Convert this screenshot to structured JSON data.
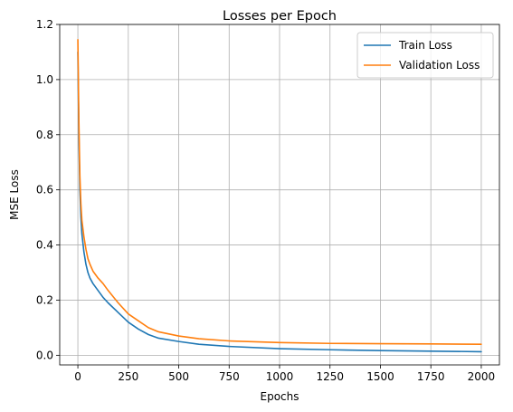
{
  "chart_data": {
    "type": "line",
    "title": "Losses per Epoch",
    "xlabel": "Epochs",
    "ylabel": "MSE Loss",
    "xlim": [
      -90,
      2090
    ],
    "ylim": [
      -0.035,
      1.2
    ],
    "xticks": [
      0,
      250,
      500,
      750,
      1000,
      1250,
      1500,
      1750,
      2000
    ],
    "yticks": [
      0.0,
      0.2,
      0.4,
      0.6,
      0.8,
      1.0,
      1.2
    ],
    "ytick_labels": [
      "0.0",
      "0.2",
      "0.4",
      "0.6",
      "0.8",
      "1.0",
      "1.2"
    ],
    "grid": true,
    "legend_position": "top-right",
    "series": [
      {
        "name": "Train Loss",
        "color": "#1f77b4",
        "x": [
          0,
          5,
          10,
          15,
          20,
          30,
          40,
          50,
          60,
          75,
          100,
          125,
          150,
          200,
          250,
          300,
          350,
          400,
          500,
          600,
          750,
          1000,
          1250,
          1500,
          1750,
          2000
        ],
        "y": [
          1.1,
          0.8,
          0.6,
          0.5,
          0.44,
          0.375,
          0.33,
          0.3,
          0.28,
          0.26,
          0.235,
          0.21,
          0.19,
          0.155,
          0.12,
          0.095,
          0.075,
          0.062,
          0.05,
          0.04,
          0.032,
          0.024,
          0.02,
          0.017,
          0.015,
          0.013
        ]
      },
      {
        "name": "Validation Loss",
        "color": "#ff7f0e",
        "x": [
          0,
          5,
          10,
          15,
          20,
          30,
          40,
          50,
          60,
          75,
          100,
          125,
          150,
          200,
          250,
          300,
          350,
          400,
          500,
          600,
          750,
          1000,
          1250,
          1500,
          1750,
          2000
        ],
        "y": [
          1.145,
          0.85,
          0.65,
          0.55,
          0.49,
          0.43,
          0.385,
          0.35,
          0.33,
          0.305,
          0.28,
          0.26,
          0.235,
          0.19,
          0.15,
          0.125,
          0.1,
          0.085,
          0.07,
          0.06,
          0.052,
          0.046,
          0.043,
          0.042,
          0.041,
          0.04
        ]
      }
    ]
  }
}
